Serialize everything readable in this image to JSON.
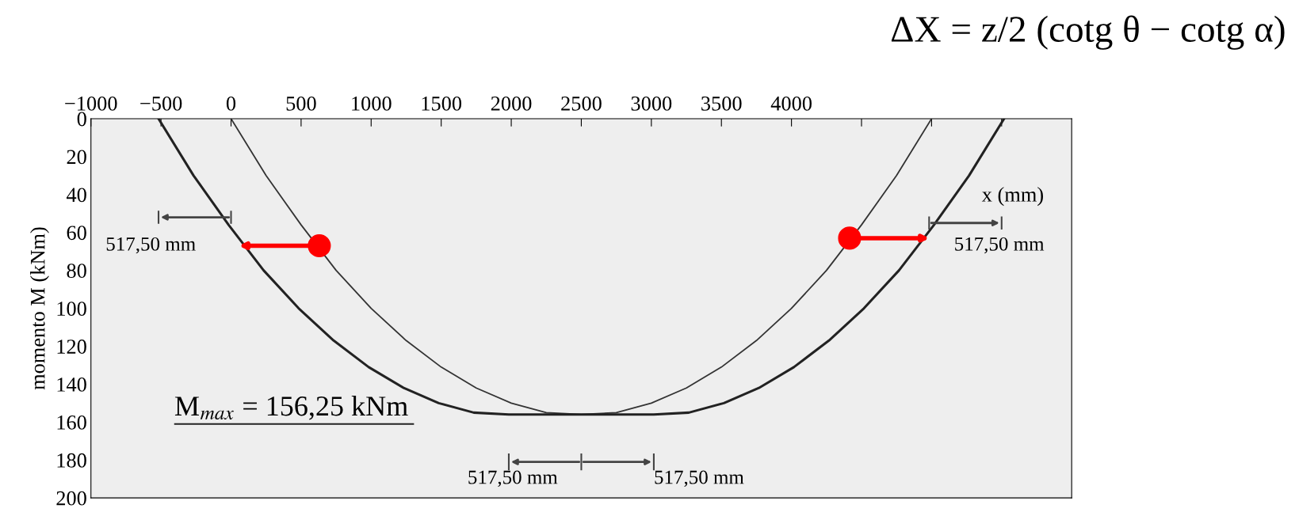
{
  "chart_data": {
    "type": "line",
    "xlabel": "x (mm)",
    "ylabel": "momento M (kNm)",
    "series": [
      {
        "color": "#333333",
        "x": [
          0,
          250,
          500,
          750,
          1000,
          1250,
          1500,
          1750,
          2000,
          2250,
          2500,
          2750,
          3000,
          3250,
          3500,
          3750,
          4000,
          4250,
          4500,
          4750,
          5000
        ],
        "values": [
          0,
          30,
          56,
          80,
          100,
          117,
          131,
          142,
          150,
          155,
          156,
          155,
          150,
          142,
          131,
          117,
          100,
          80,
          56,
          30,
          0
        ]
      },
      {
        "color": "#222222",
        "x": [
          -517.5,
          -267.5,
          -17.5,
          232.5,
          482.5,
          732.5,
          982.5,
          1232.5,
          1482.5,
          1732.5,
          1982.5,
          3017.5,
          3267.5,
          3517.5,
          3767.5,
          4017.5,
          4267.5,
          4517.5,
          4767.5,
          5017.5,
          5267.5,
          5517.5
        ],
        "values": [
          0,
          30,
          56,
          80,
          100,
          117,
          131,
          142,
          150,
          155,
          156,
          156,
          155,
          150,
          142,
          131,
          117,
          100,
          80,
          56,
          30,
          0
        ]
      }
    ],
    "xlim": [
      -1000,
      6000
    ],
    "xticks": [
      -1000,
      -500,
      0,
      500,
      1000,
      1500,
      2000,
      2500,
      3000,
      3500,
      4000,
      {
        "value": 4500,
        "label": null
      },
      {
        "value": 5000,
        "label": null
      },
      {
        "value": 5500,
        "label": null
      }
    ],
    "ylim": [
      200,
      0
    ],
    "yticks": [
      0,
      20,
      40,
      60,
      80,
      100,
      120,
      140,
      160,
      180,
      200
    ],
    "grid": false,
    "legend": false,
    "marker": "none",
    "line_style": "solid",
    "annotations": [
      "M$_{max}$ = 156,25 kNm",
      "517,50 mm",
      "517,50 mm",
      "517,50 mm",
      "517,50 mm",
      "ΔX = z/2 (cotg θ − cotg α)"
    ]
  }
}
